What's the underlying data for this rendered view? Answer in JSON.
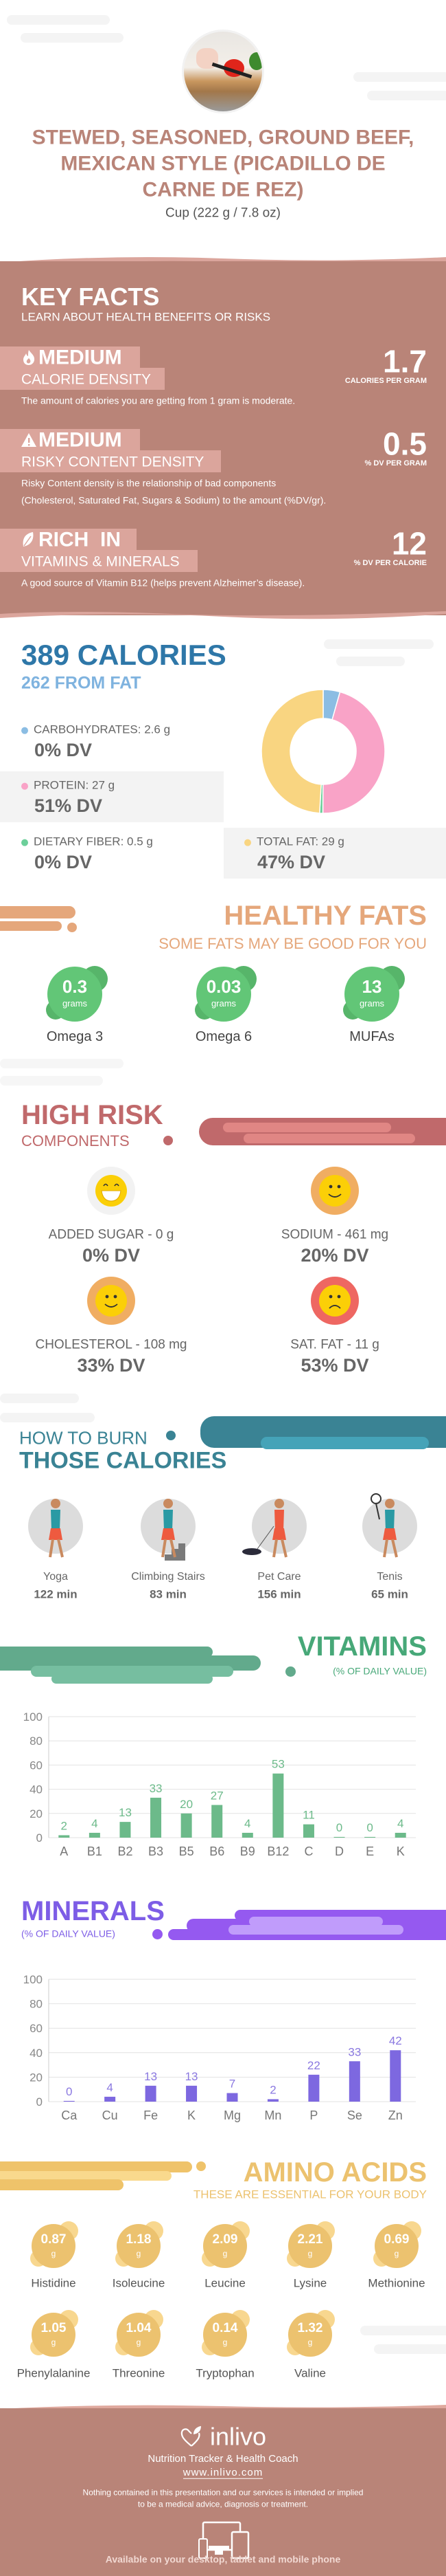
{
  "header": {
    "title_lines": [
      "STEWED, SEASONED, GROUND BEEF,",
      "MEXICAN STYLE (PICADILLO DE",
      "CARNE DE REZ)"
    ],
    "serving": "Cup (222 g / 7.8 oz)"
  },
  "key_facts": {
    "title": "KEY FACTS",
    "subtitle": "LEARN ABOUT HEALTH BENEFITS OR RISKS",
    "items": [
      {
        "icon": "flame-icon",
        "level": "MEDIUM",
        "label": "CALORIE DENSITY",
        "value": "1.7",
        "unit": "CALORIES PER GRAM",
        "description": [
          "The amount of calories you are getting from 1 gram is moderate."
        ]
      },
      {
        "icon": "warning-icon",
        "level": "MEDIUM",
        "label": "RISKY CONTENT DENSITY",
        "value": "0.5",
        "unit": "% DV PER GRAM",
        "description": [
          "Risky Content density is the relationship of bad components",
          "(Cholesterol, Saturated Fat, Sugars & Sodium) to the amount (%DV/gr)."
        ]
      },
      {
        "icon": "leaf-icon",
        "level": "RICH  IN",
        "label": "VITAMINS & MINERALS",
        "value": "12",
        "unit": "% DV PER CALORIE",
        "description": [
          "A good source of Vitamin B12 (helps prevent Alzheimer’s disease)."
        ]
      }
    ]
  },
  "calories": {
    "title": "389 CALORIES",
    "subtitle": "262 FROM FAT",
    "macros": [
      {
        "label": "CARBOHYDRATES: 2.6 g",
        "dv": "0% DV",
        "color": "#8bbde3"
      },
      {
        "label": "PROTEIN: 27 g",
        "dv": "51% DV",
        "color": "#f9a3c7"
      },
      {
        "label": "DIETARY FIBER: 0.5 g",
        "dv": "0% DV",
        "color": "#6ccf9a"
      },
      {
        "label": "TOTAL FAT: 29 g",
        "dv": "47% DV",
        "color": "#f9d581"
      }
    ]
  },
  "chart_data": [
    {
      "type": "pie",
      "style": "donut",
      "categories": [
        "Carbohydrates",
        "Protein",
        "Dietary Fiber",
        "Total Fat"
      ],
      "values": [
        2.6,
        27,
        0.5,
        29
      ],
      "colors": [
        "#8bbde3",
        "#f9a3c7",
        "#6ccf9a",
        "#f9d581"
      ]
    },
    {
      "type": "bar",
      "title": "VITAMINS",
      "subtitle": "(% OF DAILY VALUE)",
      "categories": [
        "A",
        "B1",
        "B2",
        "B3",
        "B5",
        "B6",
        "B9",
        "B12",
        "C",
        "D",
        "E",
        "K"
      ],
      "values": [
        2,
        4,
        13,
        33,
        20,
        27,
        4,
        53,
        11,
        0,
        0,
        4
      ],
      "ylim": [
        0,
        100
      ],
      "yticks": [
        0,
        20,
        40,
        60,
        80,
        100
      ],
      "grid": true,
      "color": "#6cba8a"
    },
    {
      "type": "bar",
      "title": "MINERALS",
      "subtitle": "(% OF DAILY VALUE)",
      "categories": [
        "Ca",
        "Cu",
        "Fe",
        "K",
        "Mg",
        "Mn",
        "P",
        "Se",
        "Zn"
      ],
      "values": [
        0,
        4,
        13,
        13,
        7,
        2,
        22,
        33,
        42
      ],
      "ylim": [
        0,
        100
      ],
      "yticks": [
        0,
        20,
        40,
        60,
        80,
        100
      ],
      "grid": true,
      "color": "#7d68e0"
    }
  ],
  "healthy_fats": {
    "title": "HEALTHY FATS",
    "subtitle": "SOME FATS MAY BE GOOD FOR YOU",
    "items": [
      {
        "value": "0.3",
        "unit": "grams",
        "label": "Omega 3"
      },
      {
        "value": "0.03",
        "unit": "grams",
        "label": "Omega 6"
      },
      {
        "value": "13",
        "unit": "grams",
        "label": "MUFAs"
      }
    ]
  },
  "high_risk": {
    "title": "HIGH RISK",
    "subtitle": "COMPONENTS",
    "items": [
      {
        "label": "ADDED SUGAR - 0 g",
        "dv": "0% DV",
        "icon": "grinning-face-icon",
        "ring": "#f2f2f2"
      },
      {
        "label": "SODIUM - 461 mg",
        "dv": "20% DV",
        "icon": "smiling-face-icon",
        "ring": "#f0ad62"
      },
      {
        "label": "CHOLESTEROL - 108 mg",
        "dv": "33% DV",
        "icon": "smiling-face-icon",
        "ring": "#f0ad62"
      },
      {
        "label": "SAT. FAT - 11 g",
        "dv": "53% DV",
        "icon": "sad-face-icon",
        "ring": "#ee6762"
      }
    ]
  },
  "burn": {
    "title_top": "HOW TO BURN",
    "title_bottom": "THOSE CALORIES",
    "activities": [
      {
        "label": "Yoga",
        "minutes": "122 min",
        "icon": "yoga-icon"
      },
      {
        "label": "Climbing Stairs",
        "minutes": "83 min",
        "icon": "stairs-icon"
      },
      {
        "label": "Pet Care",
        "minutes": "156 min",
        "icon": "dog-walking-icon"
      },
      {
        "label": "Tenis",
        "minutes": "65 min",
        "icon": "tennis-icon"
      }
    ]
  },
  "amino": {
    "title": "AMINO ACIDS",
    "subtitle": "THESE ARE ESSENTIAL FOR YOUR BODY",
    "items": [
      {
        "value": "0.87",
        "unit": "g",
        "label": "Histidine"
      },
      {
        "value": "1.18",
        "unit": "g",
        "label": "Isoleucine"
      },
      {
        "value": "2.09",
        "unit": "g",
        "label": "Leucine"
      },
      {
        "value": "2.21",
        "unit": "g",
        "label": "Lysine"
      },
      {
        "value": "0.69",
        "unit": "g",
        "label": "Methionine"
      },
      {
        "value": "1.05",
        "unit": "g",
        "label": "Phenylalanine"
      },
      {
        "value": "1.04",
        "unit": "g",
        "label": "Threonine"
      },
      {
        "value": "0.14",
        "unit": "g",
        "label": "Tryptophan"
      },
      {
        "value": "1.32",
        "unit": "g",
        "label": "Valine"
      }
    ]
  },
  "footer": {
    "logo": "inlivo",
    "tagline": "Nutrition Tracker & Health Coach",
    "url": "www.inlivo.com",
    "disclaimer": [
      "Nothing contained in this presentation and our services is intended or implied",
      "to be a medical advice, diagnosis or treatment."
    ],
    "available": "Available on your desktop, tablet and mobile phone"
  },
  "colors": {
    "brand": "#b98478",
    "calories": "#2e77a8",
    "healthy_fats": "#e5a77b",
    "high_risk": "#c0696b",
    "burn": "#3a8394",
    "vitamins": "#47a878",
    "minerals": "#7d5de6",
    "amino": "#ecc26f"
  }
}
